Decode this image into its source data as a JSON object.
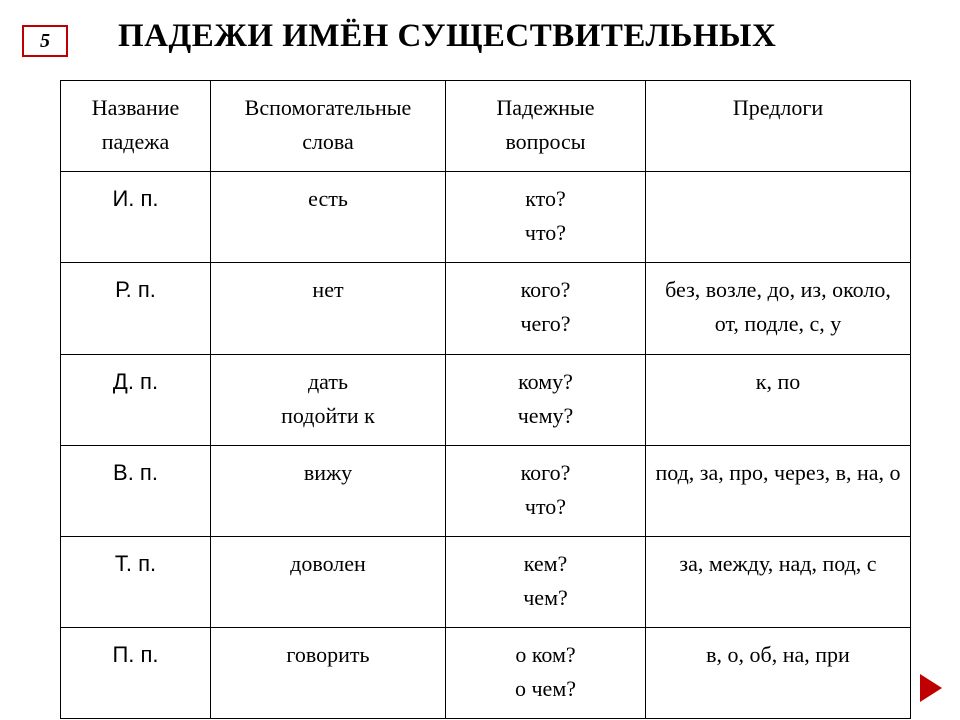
{
  "page_number": "5",
  "title": "ПАДЕЖИ ИМЁН СУЩЕСТВИТЕЛЬНЫХ",
  "columns": [
    "Название падежа",
    "Вспомогательные слова",
    "Падежные вопросы",
    "Предлоги"
  ],
  "rows": [
    {
      "case": "И.  п.",
      "aux1": "есть",
      "aux2": "",
      "q1": "кто?",
      "q2": "что?",
      "prep": ""
    },
    {
      "case": "Р.  п.",
      "aux1": "нет",
      "aux2": "",
      "q1": "кого?",
      "q2": "чего?",
      "prep": "без, возле, до, из, около, от, подле, с, у"
    },
    {
      "case": "Д.  п.",
      "aux1": "дать",
      "aux2": "подойти к",
      "q1": "кому?",
      "q2": "чему?",
      "prep": "к, по"
    },
    {
      "case": "В.  п.",
      "aux1": "вижу",
      "aux2": "",
      "q1": "кого?",
      "q2": "что?",
      "prep": "под, за, про, через, в, на, о"
    },
    {
      "case": "Т.  п.",
      "aux1": "доволен",
      "aux2": "",
      "q1": "кем?",
      "q2": "чем?",
      "prep": "за, между, над, под, с"
    },
    {
      "case": "П.  п.",
      "aux1": "говорить",
      "aux2": "",
      "q1": "о ком?",
      "q2": "о чем?",
      "prep": "в, о, об, на, при"
    }
  ],
  "colors": {
    "border_red": "#c00000",
    "text": "#000000",
    "background": "#ffffff"
  }
}
